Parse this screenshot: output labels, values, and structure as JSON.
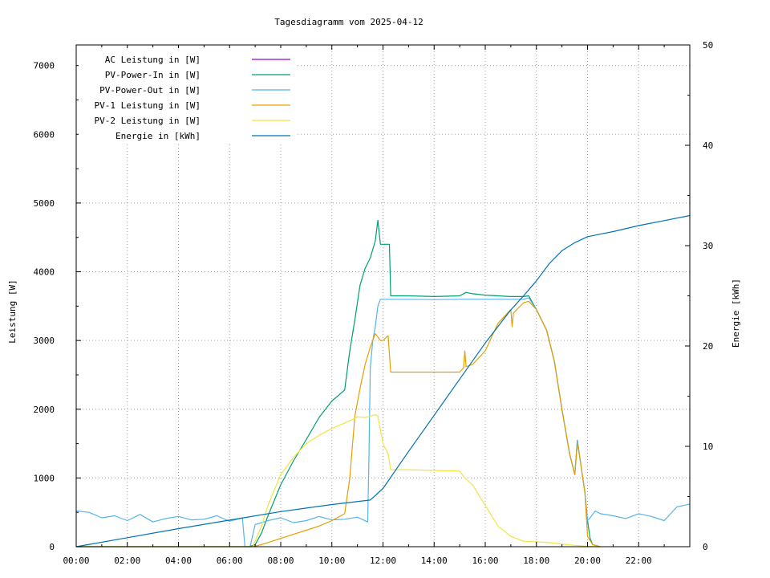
{
  "chart_data": {
    "type": "line",
    "title": "Tagesdiagramm vom 2025-04-12",
    "ylabel": "Leistung [W]",
    "y2label": "Energie [kWh]",
    "xlabel": "",
    "xlim": [
      0,
      24
    ],
    "ylim": [
      0,
      7300
    ],
    "y2lim": [
      0,
      50
    ],
    "grid": true,
    "legend_position": "top-left",
    "x_ticks": [
      "00:00",
      "02:00",
      "04:00",
      "06:00",
      "08:00",
      "10:00",
      "12:00",
      "14:00",
      "16:00",
      "18:00",
      "20:00",
      "22:00"
    ],
    "y_ticks": [
      "0",
      "1000",
      "2000",
      "3000",
      "4000",
      "5000",
      "6000",
      "7000"
    ],
    "y2_ticks": [
      "0",
      "10",
      "20",
      "30",
      "40",
      "50"
    ],
    "series": [
      {
        "name": "AC Leistung in [W]",
        "color": "#9400d3",
        "axis": "y",
        "x": [],
        "y": []
      },
      {
        "name": "PV-Power-In in [W]",
        "color": "#009e73",
        "axis": "y",
        "x": [
          0,
          6.75,
          7.0,
          7.25,
          7.5,
          8.0,
          8.5,
          9.0,
          9.5,
          10.0,
          10.5,
          10.7,
          10.9,
          11.1,
          11.3,
          11.5,
          11.7,
          11.8,
          11.9,
          12.25,
          12.3,
          13.0,
          14.0,
          15.0,
          15.25,
          15.5,
          16.0,
          16.5,
          17.0,
          17.5,
          17.7,
          18.0,
          18.4,
          18.7,
          19.0,
          19.3,
          19.5,
          19.6,
          19.7,
          19.9,
          20.0,
          20.1,
          20.2,
          20.5
        ],
        "y": [
          0,
          0,
          30,
          200,
          450,
          900,
          1250,
          1560,
          1880,
          2120,
          2280,
          2850,
          3300,
          3800,
          4050,
          4200,
          4450,
          4750,
          4400,
          4400,
          3650,
          3650,
          3640,
          3650,
          3700,
          3680,
          3660,
          3650,
          3640,
          3640,
          3650,
          3450,
          3150,
          2700,
          2000,
          1350,
          1050,
          1550,
          1300,
          780,
          380,
          120,
          30,
          0
        ]
      },
      {
        "name": "PV-Power-Out in [W]",
        "color": "#56b4e9",
        "axis": "y",
        "x": [
          0,
          0.5,
          1,
          1.5,
          2,
          2.5,
          3,
          3.5,
          4,
          4.5,
          5,
          5.5,
          6,
          6.5,
          6.6,
          6.8,
          7,
          7.5,
          8,
          8.5,
          9,
          9.5,
          10,
          10.5,
          11,
          11.4,
          11.45,
          11.5,
          11.6,
          11.7,
          11.8,
          11.9,
          12.0,
          12.5,
          13,
          14,
          15,
          15.5,
          16,
          16.5,
          17,
          17.5,
          17.7,
          18,
          18.4,
          18.7,
          19,
          19.3,
          19.5,
          19.6,
          19.7,
          19.9,
          20.0,
          20.1,
          20.3,
          20.5,
          21,
          21.5,
          22,
          22.5,
          23,
          23.5,
          24
        ],
        "y": [
          520,
          500,
          420,
          450,
          380,
          470,
          360,
          410,
          440,
          390,
          400,
          450,
          370,
          420,
          0,
          0,
          320,
          380,
          420,
          350,
          380,
          440,
          390,
          400,
          430,
          360,
          1300,
          2600,
          3000,
          3200,
          3500,
          3600,
          3600,
          3600,
          3600,
          3595,
          3600,
          3600,
          3600,
          3600,
          3600,
          3600,
          3620,
          3450,
          3150,
          2700,
          2000,
          1350,
          1050,
          1550,
          1300,
          780,
          380,
          420,
          520,
          480,
          450,
          410,
          480,
          440,
          380,
          580,
          620
        ]
      },
      {
        "name": "PV-1 Leistung in [W]",
        "color": "#e69f00",
        "axis": "y",
        "x": [
          0,
          6.9,
          7.25,
          8.0,
          8.5,
          9.0,
          9.5,
          10.0,
          10.5,
          10.7,
          10.9,
          11.1,
          11.3,
          11.5,
          11.7,
          11.9,
          12.0,
          12.2,
          12.25,
          12.3,
          13.0,
          14.0,
          15.0,
          15.15,
          15.2,
          15.25,
          15.5,
          16.0,
          16.5,
          17.0,
          17.05,
          17.1,
          17.5,
          17.7,
          18.0,
          18.4,
          18.7,
          19.0,
          19.3,
          19.5,
          19.6,
          19.7,
          19.9,
          20.0,
          20.2,
          20.5
        ],
        "y": [
          0,
          0,
          30,
          120,
          180,
          240,
          300,
          380,
          480,
          1000,
          1900,
          2300,
          2650,
          2900,
          3100,
          3000,
          3000,
          3070,
          2800,
          2540,
          2540,
          2540,
          2540,
          2600,
          2850,
          2620,
          2650,
          2850,
          3250,
          3450,
          3200,
          3400,
          3550,
          3570,
          3450,
          3150,
          2700,
          2000,
          1350,
          1050,
          1500,
          1300,
          780,
          150,
          30,
          0
        ]
      },
      {
        "name": "PV-2 Leistung in [W]",
        "color": "#f0e442",
        "axis": "y",
        "x": [
          0,
          6.9,
          7.25,
          7.5,
          8.0,
          8.5,
          9.0,
          9.5,
          10.0,
          10.5,
          10.8,
          11.0,
          11.3,
          11.5,
          11.7,
          11.8,
          11.9,
          12.0,
          12.2,
          12.3,
          13.0,
          14.0,
          15.0,
          15.2,
          15.5,
          16.0,
          16.5,
          17.0,
          17.5,
          18.0,
          18.5,
          19.0,
          19.5,
          20.0,
          20.5
        ],
        "y": [
          0,
          0,
          300,
          600,
          1050,
          1300,
          1500,
          1620,
          1720,
          1800,
          1850,
          1890,
          1880,
          1900,
          1920,
          1900,
          1700,
          1500,
          1350,
          1120,
          1120,
          1110,
          1100,
          1000,
          900,
          600,
          300,
          150,
          80,
          70,
          60,
          40,
          20,
          5,
          0
        ]
      },
      {
        "name": "Energie in [kWh]",
        "color": "#0072b2",
        "axis": "y2",
        "x": [
          0,
          2,
          4,
          6,
          8,
          10,
          11.5,
          12,
          13,
          14,
          15,
          16,
          17,
          17.5,
          18,
          18.5,
          19,
          19.5,
          20,
          21,
          22,
          23,
          24
        ],
        "y": [
          0,
          0.9,
          1.8,
          2.65,
          3.5,
          4.2,
          4.65,
          5.8,
          9.5,
          13.1,
          16.7,
          20.3,
          23.6,
          25.0,
          26.5,
          28.2,
          29.5,
          30.3,
          30.9,
          31.4,
          32.0,
          32.5,
          33.0
        ]
      }
    ]
  }
}
